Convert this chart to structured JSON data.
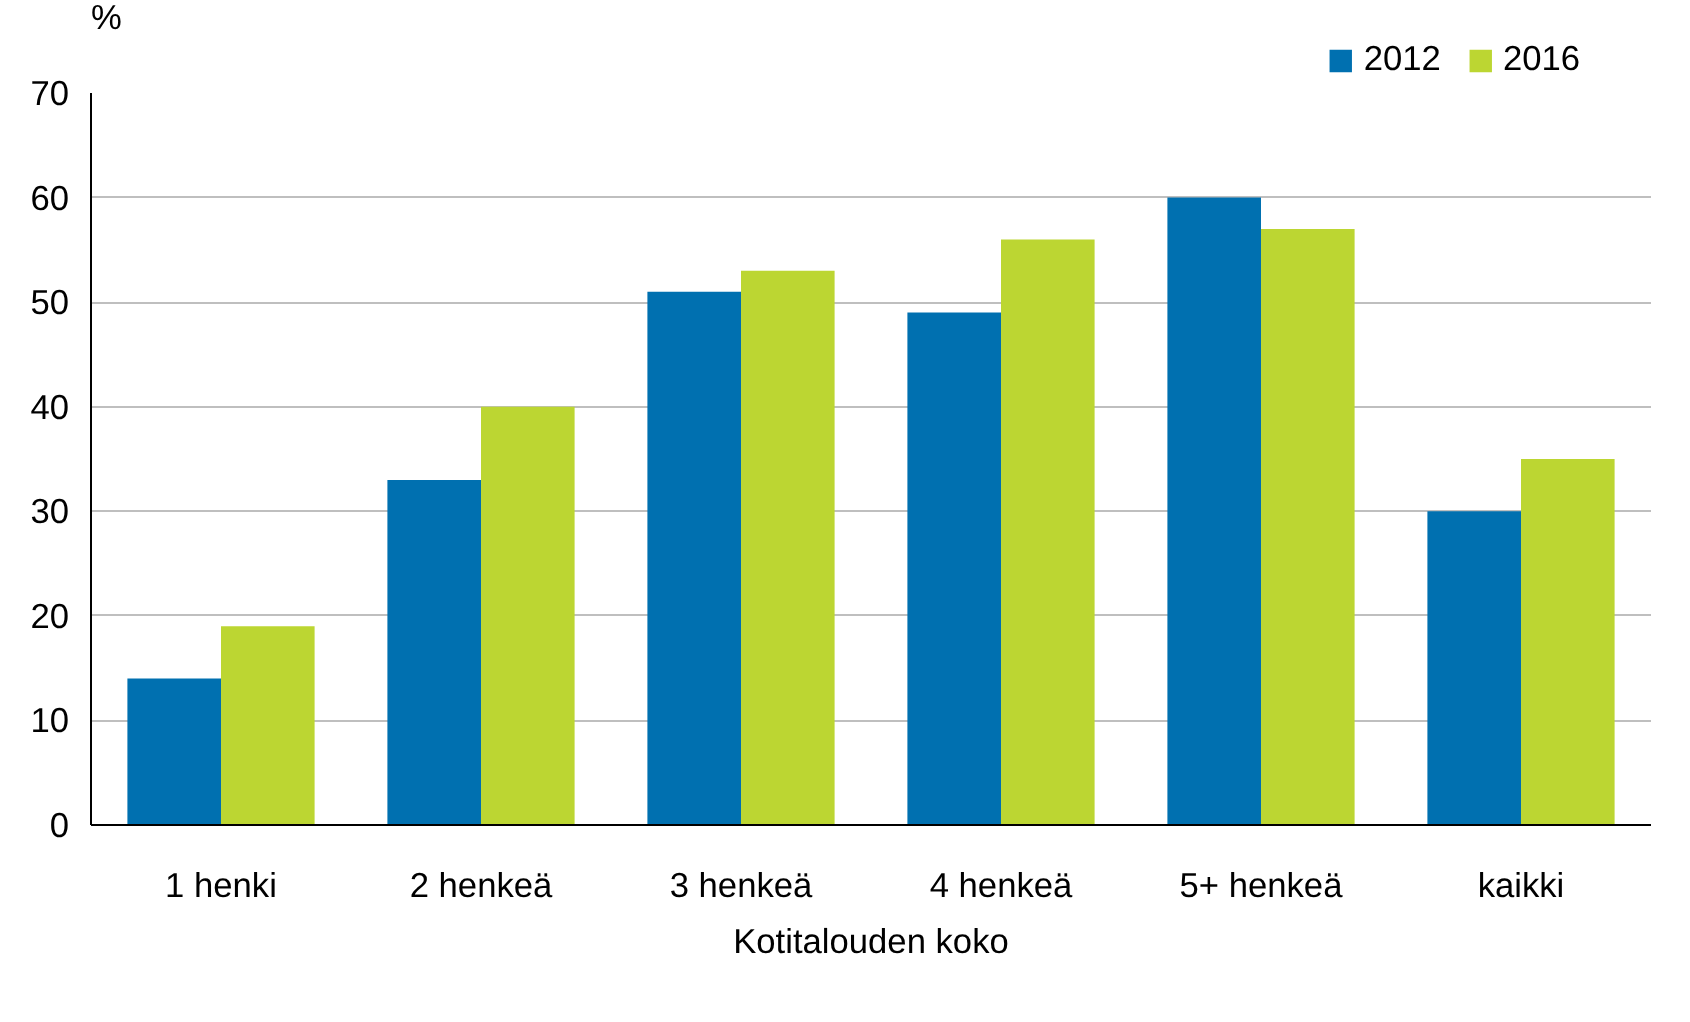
{
  "chart_data": {
    "type": "bar",
    "ylabel": "%",
    "xlabel": "Kotitalouden koko",
    "categories": [
      "1 henki",
      "2 henkeä",
      "3 henkeä",
      "4 henkeä",
      "5+ henkeä",
      "kaikki"
    ],
    "series": [
      {
        "name": "2012",
        "color": "#0070b0",
        "values": [
          14,
          33,
          51,
          49,
          60,
          30
        ]
      },
      {
        "name": "2016",
        "color": "#bcd632",
        "values": [
          19,
          40,
          53,
          56,
          57,
          35
        ]
      }
    ],
    "ylim": [
      0,
      70
    ],
    "yticks": [
      0,
      10,
      20,
      30,
      40,
      50,
      60,
      70
    ],
    "grid": "y",
    "legend": "top right"
  }
}
